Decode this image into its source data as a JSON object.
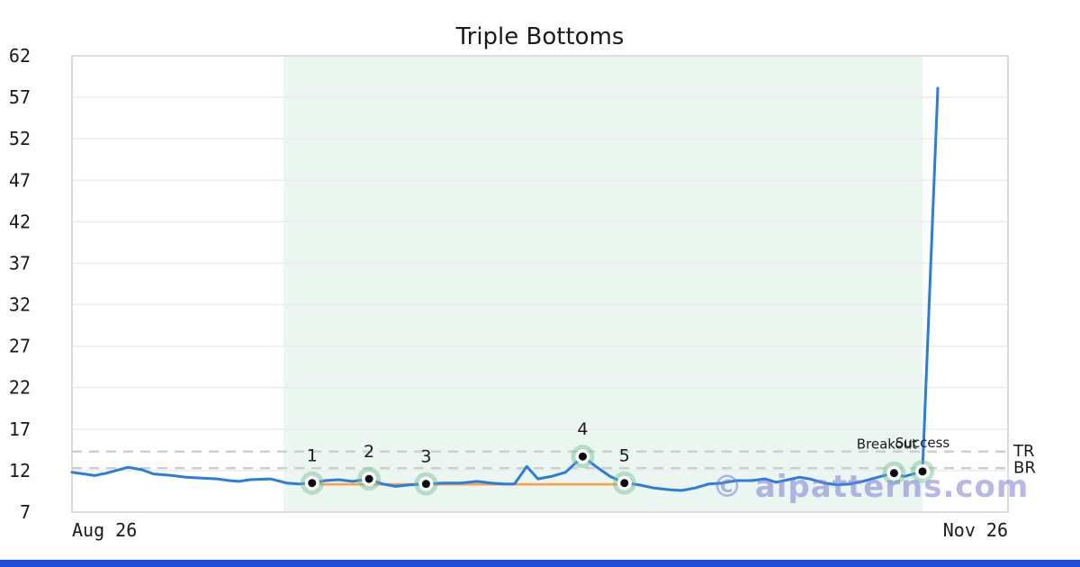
{
  "title": "Triple Bottoms",
  "watermark": {
    "text": "© aipatterns.com",
    "color": "rgba(124,124,214,0.55)"
  },
  "bottom_bar_color": "#1e4fd8",
  "chart_data": {
    "type": "line",
    "title": "Triple Bottoms",
    "xlabel": "",
    "ylabel": "",
    "xlim": [
      0,
      92
    ],
    "ylim": [
      7,
      62
    ],
    "grid": "horizontal",
    "yticks": [
      7,
      12,
      17,
      22,
      27,
      32,
      37,
      42,
      47,
      52,
      57,
      62
    ],
    "xtick_labels": [
      "Aug 26",
      "Nov 26"
    ],
    "colors": {
      "price_line": "#2b7ce0",
      "support_line": "#f6a44d",
      "level_dash": "#cdcdcd",
      "grid": "#ececec",
      "border": "#dcdcdc",
      "region_fill": "rgba(127,196,158,0.15)",
      "halo_fill": "rgba(111,190,147,0.45)",
      "dot": "#0d0d0d",
      "text": "#1a1a1a"
    },
    "series": [
      {
        "name": "price",
        "points": [
          [
            0,
            11.8
          ],
          [
            1.2,
            11.6
          ],
          [
            2.2,
            11.4
          ],
          [
            3.4,
            11.7
          ],
          [
            5.5,
            12.4
          ],
          [
            6.9,
            12.1
          ],
          [
            8,
            11.6
          ],
          [
            9.9,
            11.4
          ],
          [
            11.2,
            11.2
          ],
          [
            12.8,
            11.1
          ],
          [
            14.3,
            11
          ],
          [
            15.5,
            10.8
          ],
          [
            16.4,
            10.7
          ],
          [
            17.5,
            10.9
          ],
          [
            19.5,
            11
          ],
          [
            21.1,
            10.5
          ],
          [
            22.3,
            10.4
          ],
          [
            23.6,
            10.5
          ],
          [
            24.9,
            10.8
          ],
          [
            26.2,
            10.9
          ],
          [
            27.6,
            10.7
          ],
          [
            29.2,
            11
          ],
          [
            30.5,
            10.4
          ],
          [
            31.8,
            10.1
          ],
          [
            33.3,
            10.3
          ],
          [
            34.8,
            10.4
          ],
          [
            36.4,
            10.5
          ],
          [
            38.2,
            10.5
          ],
          [
            39.8,
            10.7
          ],
          [
            41.2,
            10.5
          ],
          [
            42.5,
            10.4
          ],
          [
            43.5,
            10.4
          ],
          [
            44.7,
            12.5
          ],
          [
            45.8,
            11
          ],
          [
            47.1,
            11.3
          ],
          [
            48.5,
            11.8
          ],
          [
            50.2,
            13.7
          ],
          [
            51.6,
            12.4
          ],
          [
            52.9,
            11.3
          ],
          [
            54.3,
            10.5
          ],
          [
            55.7,
            10.3
          ],
          [
            57.2,
            9.9
          ],
          [
            58.7,
            9.7
          ],
          [
            59.9,
            9.6
          ],
          [
            61.2,
            9.9
          ],
          [
            62.6,
            10.4
          ],
          [
            63.9,
            10.5
          ],
          [
            65.3,
            10.8
          ],
          [
            66.8,
            10.8
          ],
          [
            68.1,
            11
          ],
          [
            69.2,
            10.6
          ],
          [
            70.4,
            10.9
          ],
          [
            71.5,
            11.2
          ],
          [
            72.5,
            11
          ],
          [
            73.9,
            10.5
          ],
          [
            75.2,
            10.3
          ],
          [
            76.5,
            10.4
          ],
          [
            77.7,
            10.7
          ],
          [
            78.9,
            11.1
          ],
          [
            79.8,
            11.4
          ],
          [
            80.8,
            11.7
          ],
          [
            81.8,
            11.3
          ],
          [
            82.7,
            11.6
          ],
          [
            83.6,
            11.9
          ],
          [
            85.1,
            58.1
          ]
        ]
      }
    ],
    "pattern_region": {
      "d1": 20.8,
      "d2": 83.6
    },
    "support_line": {
      "value": 10.35,
      "d1": 23.6,
      "d2": 54.3
    },
    "levels": [
      {
        "label": "TR",
        "value": 14.3
      },
      {
        "label": "BR",
        "value": 12.3
      }
    ],
    "bottoms": [
      {
        "label": "1",
        "d": 23.6,
        "v": 10.5
      },
      {
        "label": "2",
        "d": 29.2,
        "v": 11.0
      },
      {
        "label": "3",
        "d": 34.8,
        "v": 10.4
      },
      {
        "label": "4",
        "d": 50.2,
        "v": 13.7
      },
      {
        "label": "5",
        "d": 54.3,
        "v": 10.5
      }
    ],
    "annotations": [
      {
        "label": "Breakout",
        "d": 80.8,
        "v": 11.7,
        "dx": -8
      },
      {
        "label": "Success",
        "d": 83.6,
        "v": 11.9,
        "dx": 0
      }
    ]
  }
}
